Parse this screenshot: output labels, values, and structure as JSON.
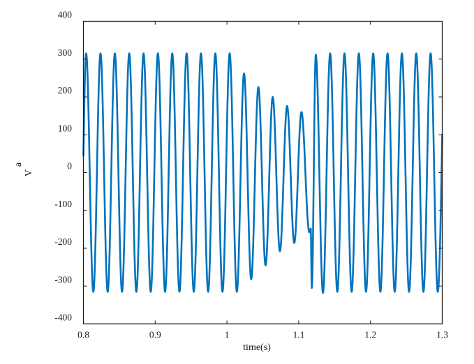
{
  "chart_data": {
    "type": "line",
    "title": "",
    "xlabel": "time(s)",
    "ylabel": "V",
    "ylabel_subscript": "a",
    "xlim": [
      0.8,
      1.3
    ],
    "ylim": [
      -400,
      400
    ],
    "xticks": [
      0.8,
      0.9,
      1,
      1.1,
      1.2,
      1.3
    ],
    "xtick_labels": [
      "0.8",
      "0.9",
      "1",
      "1.1",
      "1.2",
      "1.3"
    ],
    "yticks": [
      400,
      300,
      200,
      100,
      0,
      -100,
      -200,
      -300,
      -400
    ],
    "ytick_labels": [
      "400",
      "300",
      "200",
      "100",
      "0",
      "-100",
      "-200",
      "-300",
      "-400"
    ],
    "grid": false,
    "legend": null,
    "line_color": "#0072BD",
    "series": [
      {
        "name": "Va",
        "frequency_hz": 50,
        "nominal_amplitude": 315,
        "description": "50 Hz sinusoid at ~315 V peak; voltage sag from ~1.02 s to ~1.118 s with decaying peaks, transient spike at ~1.118 s, then recovery to ~315 V peak",
        "extrema": [
          {
            "t": 0.8038,
            "v": 315
          },
          {
            "t": 0.8138,
            "v": -315
          },
          {
            "t": 0.8238,
            "v": 315
          },
          {
            "t": 0.8338,
            "v": -315
          },
          {
            "t": 0.8438,
            "v": 315
          },
          {
            "t": 0.8538,
            "v": -315
          },
          {
            "t": 0.8638,
            "v": 315
          },
          {
            "t": 0.8738,
            "v": -315
          },
          {
            "t": 0.8838,
            "v": 315
          },
          {
            "t": 0.8938,
            "v": -315
          },
          {
            "t": 0.9038,
            "v": 315
          },
          {
            "t": 0.9138,
            "v": -315
          },
          {
            "t": 0.9238,
            "v": 315
          },
          {
            "t": 0.9338,
            "v": -315
          },
          {
            "t": 0.9438,
            "v": 315
          },
          {
            "t": 0.9538,
            "v": -315
          },
          {
            "t": 0.9638,
            "v": 315
          },
          {
            "t": 0.9738,
            "v": -315
          },
          {
            "t": 0.9838,
            "v": 315
          },
          {
            "t": 0.9938,
            "v": -315
          },
          {
            "t": 1.0038,
            "v": 315
          },
          {
            "t": 1.0138,
            "v": -315
          },
          {
            "t": 1.0238,
            "v": 262
          },
          {
            "t": 1.0338,
            "v": -282
          },
          {
            "t": 1.0438,
            "v": 226
          },
          {
            "t": 1.0538,
            "v": -245
          },
          {
            "t": 1.0638,
            "v": 200
          },
          {
            "t": 1.0738,
            "v": -208
          },
          {
            "t": 1.0838,
            "v": 176
          },
          {
            "t": 1.0938,
            "v": -186
          },
          {
            "t": 1.1038,
            "v": 160
          },
          {
            "t": 1.1148,
            "v": -158
          },
          {
            "t": 1.1168,
            "v": -148
          },
          {
            "t": 1.1182,
            "v": -305
          },
          {
            "t": 1.1238,
            "v": 312
          },
          {
            "t": 1.1338,
            "v": -318
          },
          {
            "t": 1.1438,
            "v": 315
          },
          {
            "t": 1.1538,
            "v": -315
          },
          {
            "t": 1.1638,
            "v": 315
          },
          {
            "t": 1.1738,
            "v": -315
          },
          {
            "t": 1.1838,
            "v": 315
          },
          {
            "t": 1.1938,
            "v": -315
          },
          {
            "t": 1.2038,
            "v": 315
          },
          {
            "t": 1.2138,
            "v": -315
          },
          {
            "t": 1.2238,
            "v": 315
          },
          {
            "t": 1.2338,
            "v": -315
          },
          {
            "t": 1.2438,
            "v": 315
          },
          {
            "t": 1.2538,
            "v": -315
          },
          {
            "t": 1.2638,
            "v": 315
          },
          {
            "t": 1.2738,
            "v": -315
          },
          {
            "t": 1.2838,
            "v": 315
          },
          {
            "t": 1.2938,
            "v": -315
          }
        ],
        "start": {
          "t": 0.8,
          "v": 45
        },
        "end": {
          "t": 1.3,
          "v": 100
        }
      }
    ]
  }
}
